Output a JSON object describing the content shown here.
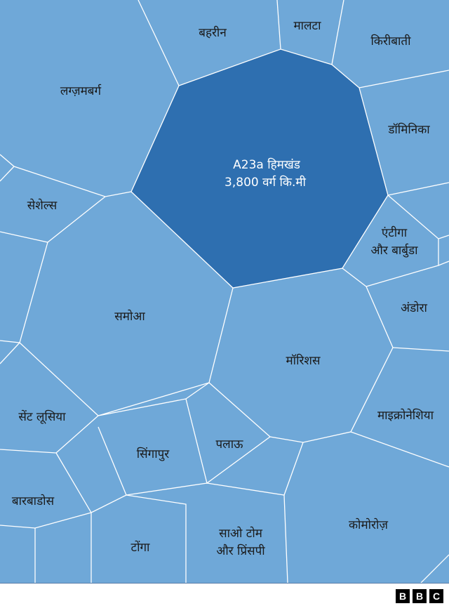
{
  "colors": {
    "cell": "#6fa8d8",
    "iceberg": "#2e6fb0",
    "edge": "#ffffff"
  },
  "iceberg": {
    "line1": "A23a हिमखंड",
    "line2": "3,800 वर्ग कि.मी"
  },
  "regions": {
    "bahrain": "बहरीन",
    "malta": "मालटा",
    "kiribati": "किरीबाती",
    "luxembourg": "लग्ज़मबर्ग",
    "dominica": "डॉमिनिका",
    "seychelles": "सेशेल्स",
    "antigua_1": "एंटीगा",
    "antigua_2": "और बार्बुडा",
    "samoa": "समोआ",
    "andorra": "अंडोरा",
    "mauritius": "मॉरिशस",
    "micronesia": "माइक्रोनेशिया",
    "st_lucia": "सेंट लूसिया",
    "singapore": "सिंगापुर",
    "palau": "पलाऊ",
    "barbados": "बारबाडोस",
    "comoros": "कोमोरोज़",
    "tonga": "टोंगा",
    "sao_tome_1": "साओ टोम",
    "sao_tome_2": "और प्रिंसपी"
  },
  "logo": "BBC"
}
